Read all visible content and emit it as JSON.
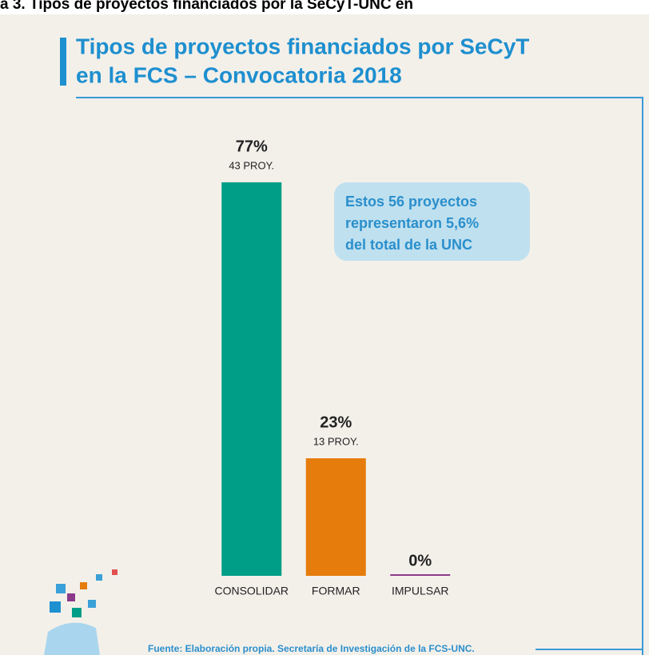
{
  "chart_data": {
    "type": "bar",
    "caption": "a 3. Tipos de proyectos financiados por la SeCyT-UNC en",
    "title": [
      "Tipos de proyectos financiados por SeCyT",
      "en la FCS – Convocatoria 2018"
    ],
    "categories": [
      "CONSOLIDAR",
      "FORMAR",
      "IMPULSAR"
    ],
    "values": [
      77,
      23,
      0
    ],
    "value_labels": [
      "77%",
      "23%",
      "0%"
    ],
    "sublabels": [
      "43 PROY.",
      "13 PROY.",
      null
    ],
    "colors": [
      "#009e86",
      "#e57c0b",
      "#8b3a8a"
    ],
    "ylim": [
      0,
      100
    ],
    "annotation": [
      "Estos 56 proyectos",
      "representaron 5,6%",
      "del total de la UNC"
    ],
    "source": "Fuente: Elaboración propia. Secretaría de Investigación de la FCS-UNC."
  }
}
